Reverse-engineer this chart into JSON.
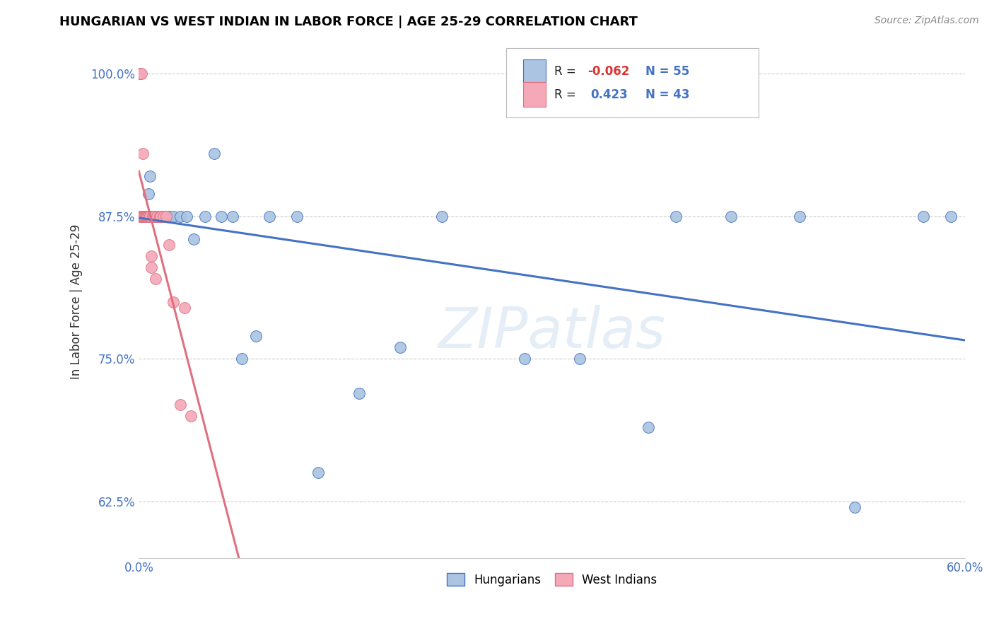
{
  "title": "HUNGARIAN VS WEST INDIAN IN LABOR FORCE | AGE 25-29 CORRELATION CHART",
  "source": "Source: ZipAtlas.com",
  "ylabel": "In Labor Force | Age 25-29",
  "xlim": [
    0.0,
    0.6
  ],
  "ylim": [
    0.575,
    1.025
  ],
  "xticks": [
    0.0,
    0.1,
    0.2,
    0.3,
    0.4,
    0.5,
    0.6
  ],
  "xticklabels": [
    "0.0%",
    "",
    "",
    "",
    "",
    "",
    "60.0%"
  ],
  "yticks": [
    0.625,
    0.75,
    0.875,
    1.0
  ],
  "yticklabels": [
    "62.5%",
    "75.0%",
    "87.5%",
    "100.0%"
  ],
  "R_hungarian": -0.062,
  "N_hungarian": 55,
  "R_west_indian": 0.423,
  "N_west_indian": 43,
  "hungarian_color": "#aac4e2",
  "west_indian_color": "#f4a8b8",
  "trendline_hungarian_color": "#4472c4",
  "trendline_west_indian_color": "#e07080",
  "legend_label_hungarian": "Hungarians",
  "legend_label_west_indian": "West Indians",
  "watermark": "ZIPatlas",
  "hungarian_x": [
    0.001,
    0.001,
    0.002,
    0.002,
    0.002,
    0.003,
    0.003,
    0.003,
    0.003,
    0.004,
    0.004,
    0.004,
    0.005,
    0.005,
    0.005,
    0.006,
    0.006,
    0.007,
    0.007,
    0.008,
    0.008,
    0.009,
    0.01,
    0.01,
    0.012,
    0.013,
    0.015,
    0.017,
    0.02,
    0.022,
    0.025,
    0.03,
    0.035,
    0.04,
    0.048,
    0.055,
    0.06,
    0.068,
    0.075,
    0.085,
    0.095,
    0.115,
    0.13,
    0.16,
    0.19,
    0.22,
    0.28,
    0.32,
    0.37,
    0.39,
    0.43,
    0.48,
    0.52,
    0.57,
    0.59
  ],
  "hungarian_y": [
    1.0,
    1.0,
    0.875,
    0.875,
    0.875,
    0.875,
    0.875,
    0.875,
    0.875,
    0.875,
    0.875,
    0.875,
    0.875,
    0.875,
    0.875,
    0.875,
    0.875,
    0.895,
    0.875,
    0.91,
    0.875,
    0.875,
    0.875,
    0.875,
    0.875,
    0.875,
    0.875,
    0.875,
    0.875,
    0.875,
    0.875,
    0.875,
    0.875,
    0.855,
    0.875,
    0.93,
    0.875,
    0.875,
    0.75,
    0.77,
    0.875,
    0.875,
    0.65,
    0.72,
    0.76,
    0.875,
    0.75,
    0.75,
    0.69,
    0.875,
    0.875,
    0.875,
    0.62,
    0.875,
    0.875
  ],
  "west_indian_x": [
    0.001,
    0.001,
    0.001,
    0.002,
    0.002,
    0.002,
    0.003,
    0.003,
    0.003,
    0.003,
    0.004,
    0.004,
    0.004,
    0.005,
    0.005,
    0.005,
    0.005,
    0.006,
    0.006,
    0.006,
    0.006,
    0.007,
    0.007,
    0.007,
    0.008,
    0.008,
    0.008,
    0.009,
    0.009,
    0.01,
    0.01,
    0.011,
    0.012,
    0.013,
    0.015,
    0.016,
    0.018,
    0.02,
    0.022,
    0.025,
    0.03,
    0.033,
    0.038
  ],
  "west_indian_y": [
    1.0,
    1.0,
    0.875,
    1.0,
    0.875,
    0.875,
    0.875,
    0.875,
    0.875,
    0.93,
    0.875,
    0.875,
    0.875,
    0.875,
    0.875,
    0.875,
    0.875,
    0.875,
    0.875,
    0.875,
    0.875,
    0.875,
    0.875,
    0.875,
    0.875,
    0.875,
    0.875,
    0.84,
    0.83,
    0.875,
    0.875,
    0.875,
    0.82,
    0.875,
    0.875,
    0.875,
    0.875,
    0.875,
    0.85,
    0.8,
    0.71,
    0.795,
    0.7
  ],
  "trendline_x_start": 0.0,
  "trendline_x_end": 0.6
}
